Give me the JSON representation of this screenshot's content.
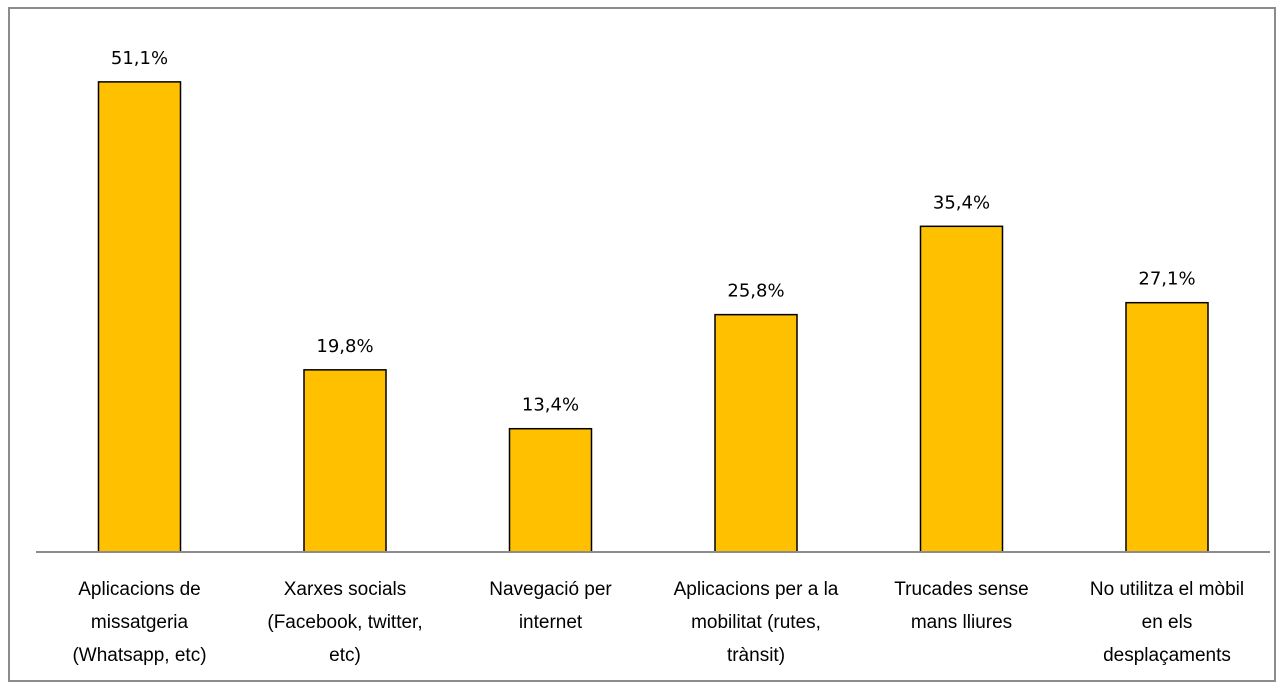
{
  "chart_data": {
    "type": "bar",
    "categories": [
      [
        "Aplicacions de",
        "missatgeria",
        "(Whatsapp, etc)"
      ],
      [
        "Xarxes socials",
        "(Facebook, twitter,",
        "etc)"
      ],
      [
        "Navegació per",
        "internet"
      ],
      [
        "Aplicacions per a la",
        "mobilitat (rutes,",
        "trànsit)"
      ],
      [
        "Trucades sense",
        "mans lliures"
      ],
      [
        "No utilitza el mòbil",
        "en els",
        "desplaçaments"
      ]
    ],
    "values": [
      51.1,
      19.8,
      13.4,
      25.8,
      35.4,
      27.1
    ],
    "value_labels": [
      "51,1%",
      "19,8%",
      "13,4%",
      "25,8%",
      "35,4%",
      "27,1%"
    ],
    "title": "",
    "xlabel": "",
    "ylabel": "",
    "ylim": [
      0,
      60
    ],
    "grid": false,
    "legend": "none",
    "bar_color": "#FFC000",
    "bar_outline": "#000000"
  }
}
